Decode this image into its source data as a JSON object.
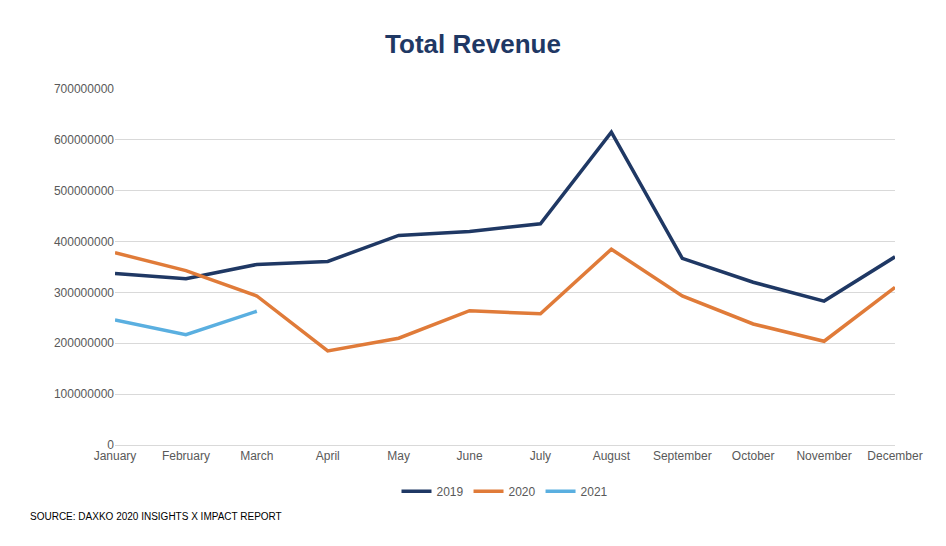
{
  "chart_data": {
    "type": "line",
    "title": "Total Revenue",
    "source": "SOURCE: DAXKO 2020 INSIGHTS X IMPACT REPORT",
    "categories": [
      "January",
      "February",
      "March",
      "April",
      "May",
      "June",
      "July",
      "August",
      "September",
      "October",
      "November",
      "December"
    ],
    "series": [
      {
        "name": "2019",
        "color": "#1f3864",
        "values": [
          337000000,
          327000000,
          355000000,
          361000000,
          412000000,
          420000000,
          435000000,
          615000000,
          367000000,
          320000000,
          283000000,
          370000000
        ]
      },
      {
        "name": "2020",
        "color": "#e07b39",
        "values": [
          378000000,
          343000000,
          293000000,
          185000000,
          210000000,
          264000000,
          258000000,
          385000000,
          293000000,
          238000000,
          204000000,
          310000000
        ]
      },
      {
        "name": "2021",
        "color": "#5aafe0",
        "values": [
          246000000,
          217000000,
          263000000,
          null,
          null,
          null,
          null,
          null,
          null,
          null,
          null,
          null
        ]
      }
    ],
    "ylim": [
      0,
      700000000
    ],
    "yticks": [
      0,
      100000000,
      200000000,
      300000000,
      400000000,
      500000000,
      600000000,
      700000000
    ],
    "grid": true,
    "legend": "bottom"
  }
}
